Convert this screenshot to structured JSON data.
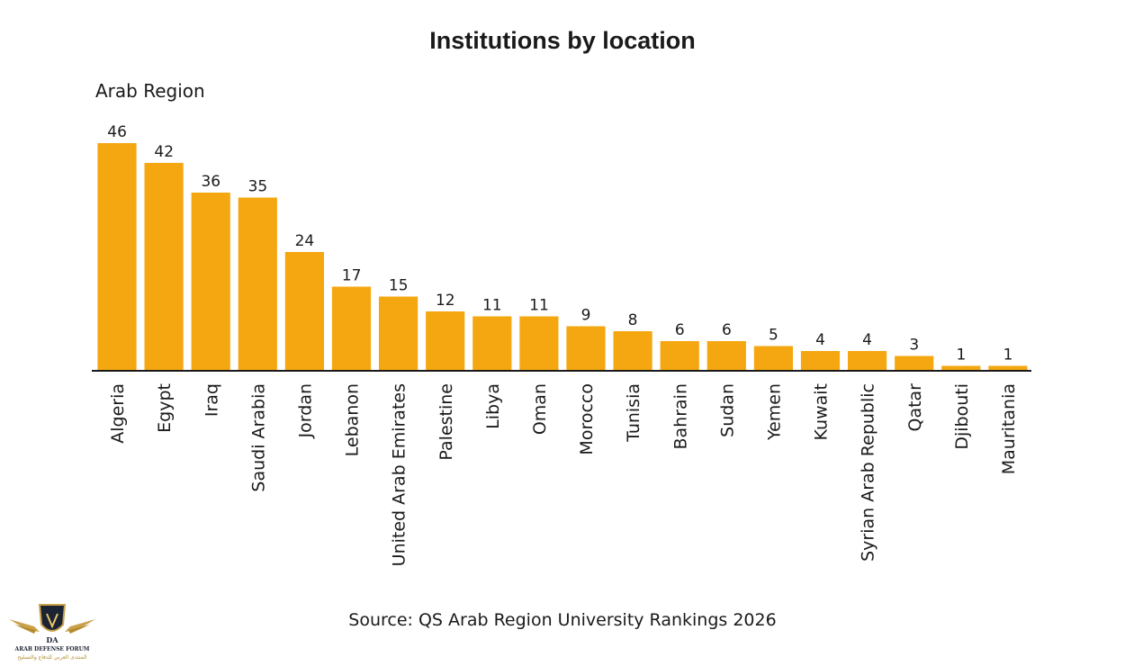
{
  "chart_data": {
    "type": "bar",
    "title": "Institutions by location",
    "subtitle": "Arab Region",
    "categories": [
      "Algeria",
      "Egypt",
      "Iraq",
      "Saudi Arabia",
      "Jordan",
      "Lebanon",
      "United Arab Emirates",
      "Palestine",
      "Libya",
      "Oman",
      "Morocco",
      "Tunisia",
      "Bahrain",
      "Sudan",
      "Yemen",
      "Kuwait",
      "Syrian Arab Republic",
      "Qatar",
      "Djibouti",
      "Mauritania"
    ],
    "values": [
      46,
      42,
      36,
      35,
      24,
      17,
      15,
      12,
      11,
      11,
      9,
      8,
      6,
      6,
      5,
      4,
      4,
      3,
      1,
      1
    ],
    "ylim": [
      0,
      46
    ],
    "bar_color": "#F5A711",
    "grid": false,
    "xlabel": "",
    "ylabel": ""
  },
  "source": "Source: QS Arab Region University Rankings 2026",
  "logo": {
    "text_en": "ARAB DEFENSE FORUM",
    "text_ar": "المنتدى العربي للدفاع والتسليح",
    "mark": "DA"
  }
}
